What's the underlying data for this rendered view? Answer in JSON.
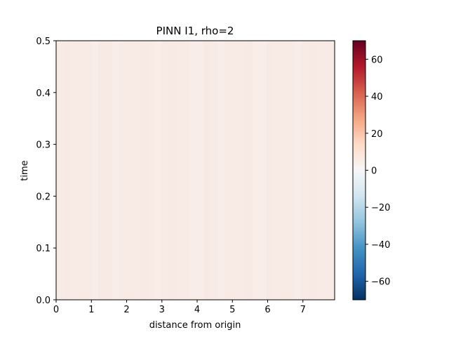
{
  "chart_data": {
    "type": "heatmap",
    "title": "PINN I1, rho=2",
    "xlabel": "distance from origin",
    "ylabel": "time",
    "xlim": [
      0,
      7.9
    ],
    "ylim": [
      0,
      0.5
    ],
    "x_ticks": [
      "0",
      "1",
      "2",
      "3",
      "4",
      "5",
      "6",
      "7"
    ],
    "y_ticks": [
      "0.0",
      "0.1",
      "0.2",
      "0.3",
      "0.4",
      "0.5"
    ],
    "colormap": "RdBu_r",
    "color_range": [
      -70,
      70
    ],
    "colorbar_ticks": [
      "−60",
      "−40",
      "−20",
      "0",
      "20",
      "40",
      "60"
    ],
    "field_value_approx": 3,
    "colors": {
      "field": "#f8ebe5",
      "field_light": "#f9eee9",
      "field_dark": "#f6e7e1",
      "colorbar_stops": [
        "#053061",
        "#2166ac",
        "#4393c3",
        "#92c5de",
        "#d1e5f0",
        "#f7f7f7",
        "#fddbc7",
        "#f4a582",
        "#d6604d",
        "#b2182b",
        "#67001f"
      ]
    }
  }
}
